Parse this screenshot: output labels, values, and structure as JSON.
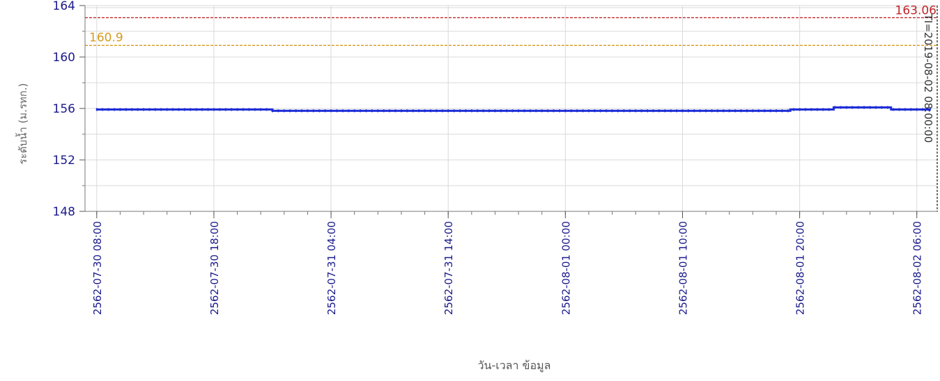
{
  "chart_data": {
    "type": "line",
    "title": "",
    "xlabel": "วัน-เวลา ข้อมูล",
    "ylabel": "ระดับน้ำ (ม.รทก.)",
    "ylim": [
      148,
      164
    ],
    "yticks": [
      148,
      152,
      156,
      160,
      164
    ],
    "y_minor_step": 2,
    "grid": true,
    "x_range_hours": [
      -1,
      71.8
    ],
    "x_ticks": [
      {
        "hours": 0,
        "label": "2562-07-30 08:00"
      },
      {
        "hours": 10,
        "label": "2562-07-30 18:00"
      },
      {
        "hours": 20,
        "label": "2562-07-31 04:00"
      },
      {
        "hours": 30,
        "label": "2562-07-31 14:00"
      },
      {
        "hours": 40,
        "label": "2562-08-01 00:00"
      },
      {
        "hours": 50,
        "label": "2562-08-01 10:00"
      },
      {
        "hours": 60,
        "label": "2562-08-01 20:00"
      },
      {
        "hours": 70,
        "label": "2562-08-02 06:00"
      }
    ],
    "x_minor_step_hours": 2,
    "series": [
      {
        "color": "#1f2fd6",
        "step_points": [
          {
            "hours": 0,
            "value": 155.92
          },
          {
            "hours": 15,
            "value": 155.82
          },
          {
            "hours": 59.2,
            "value": 155.92
          },
          {
            "hours": 62.9,
            "value": 156.08
          },
          {
            "hours": 67.8,
            "value": 155.92
          },
          {
            "hours": 71.2,
            "value": 155.92
          }
        ]
      }
    ],
    "reference_lines": [
      {
        "value": 163.06,
        "label": "163.06",
        "color": "#c0262b"
      },
      {
        "value": 160.9,
        "label": "160.9",
        "color": "#d69a1f"
      }
    ],
    "vertical_marker": {
      "hours": 71.8,
      "label": "TI=2019-08-02 08:00:00",
      "color": "#333333"
    }
  }
}
